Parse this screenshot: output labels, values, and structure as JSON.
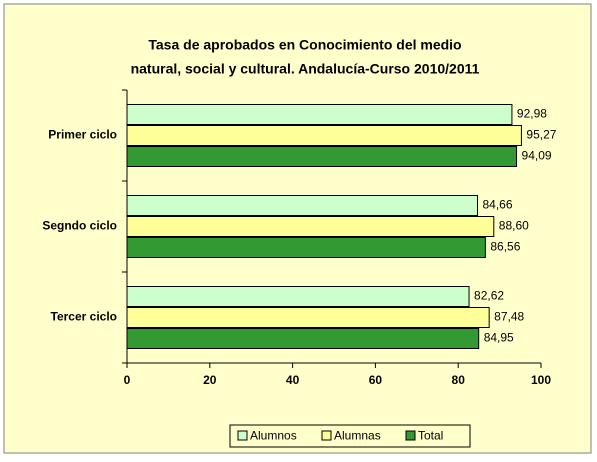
{
  "chart_data": {
    "type": "hbar",
    "title": [
      "Tasa de aprobados en Conocimiento del medio",
      "natural, social y cultural. Andalucía-Curso 2010/2011"
    ],
    "categories": [
      "Primer ciclo",
      "Segndo ciclo",
      "Tercer ciclo"
    ],
    "series": [
      {
        "name": "Alumnos",
        "color": "#ccffcc",
        "values": [
          92.98,
          84.66,
          82.62
        ],
        "value_labels": [
          "92,98",
          "84,66",
          "82,62"
        ]
      },
      {
        "name": "Alumnas",
        "color": "#ffff99",
        "values": [
          95.27,
          88.6,
          87.48
        ],
        "value_labels": [
          "95,27",
          "88,60",
          "87,48"
        ]
      },
      {
        "name": "Total",
        "color": "#339933",
        "values": [
          94.09,
          86.56,
          84.95
        ],
        "value_labels": [
          "94,09",
          "86,56",
          "84,95"
        ]
      }
    ],
    "xlim": [
      0,
      100
    ],
    "xticks": [
      0,
      20,
      40,
      60,
      80,
      100
    ],
    "legend": "bottom"
  }
}
